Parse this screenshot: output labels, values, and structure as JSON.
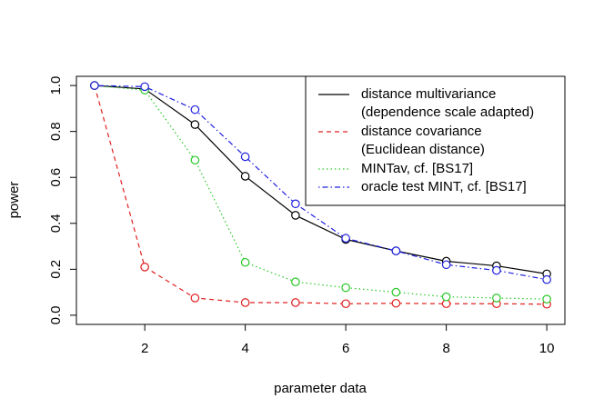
{
  "chart_data": {
    "type": "line",
    "xlabel": "parameter data",
    "ylabel": "power",
    "x": [
      1,
      2,
      3,
      4,
      5,
      6,
      7,
      8,
      9,
      10
    ],
    "series": [
      {
        "name": "distance multivariance\n(dependence scale adapted)",
        "color": "#000000",
        "linestyle": "solid",
        "values": [
          1.0,
          0.985,
          0.83,
          0.605,
          0.435,
          0.33,
          0.28,
          0.235,
          0.215,
          0.18
        ]
      },
      {
        "name": "distance covariance\n(Euclidean distance)",
        "color": "#df2020",
        "linestyle": "dashed",
        "values": [
          1.0,
          0.21,
          0.075,
          0.055,
          0.055,
          0.05,
          0.052,
          0.05,
          0.05,
          0.048
        ]
      },
      {
        "name": "MINTav, cf. [BS17]",
        "color": "#28c828",
        "linestyle": "dotted",
        "values": [
          1.0,
          0.98,
          0.675,
          0.23,
          0.145,
          0.12,
          0.1,
          0.08,
          0.075,
          0.07
        ]
      },
      {
        "name": "oracle test MINT, cf. [BS17]",
        "color": "#2020df",
        "linestyle": "dotdash",
        "values": [
          1.0,
          0.995,
          0.895,
          0.69,
          0.485,
          0.335,
          0.28,
          0.22,
          0.195,
          0.155
        ]
      }
    ],
    "xlim": [
      0.64,
      10.36
    ],
    "xticks": [
      2,
      4,
      6,
      8,
      10
    ],
    "ylim": [
      -0.04,
      1.04
    ],
    "yticks": [
      {
        "value": 0,
        "label": "0.0"
      },
      {
        "value": 0.2,
        "label": "0.2"
      },
      {
        "value": 0.4,
        "label": "0.4"
      },
      {
        "value": 0.6,
        "label": "0.6"
      },
      {
        "value": 0.8,
        "label": "0.8"
      },
      {
        "value": 1,
        "label": "1.0"
      }
    ],
    "legend": "top-right",
    "grid": false
  }
}
